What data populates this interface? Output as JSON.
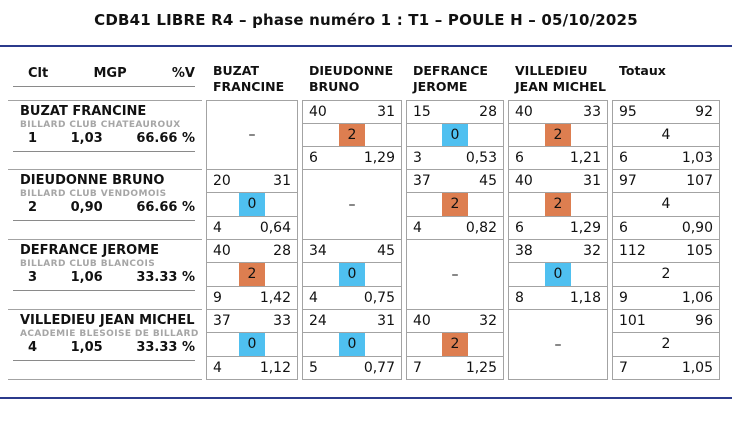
{
  "title": "CDB41 LIBRE R4 – phase numéro 1 : T1 – POULE H – 05/10/2025",
  "ui": {
    "dash": "–"
  },
  "colors": {
    "rule": "#2b3a8c",
    "win": "#dd7e50",
    "loss": "#4fc0f0",
    "grid_border": "#a3a3a3",
    "club_text": "#a6a6a6"
  },
  "header": {
    "clt": "Clt",
    "mgp": "MGP",
    "pv": "%V",
    "columns": [
      {
        "line1": "BUZAT",
        "line2": "FRANCINE"
      },
      {
        "line1": "DIEUDONNE",
        "line2": "BRUNO"
      },
      {
        "line1": "DEFRANCE",
        "line2": "JEROME"
      },
      {
        "line1": "VILLEDIEU",
        "line2": "JEAN MICHEL"
      }
    ],
    "totals_label": "Totaux"
  },
  "rows": [
    {
      "name": "BUZAT FRANCINE",
      "club": "BILLARD CLUB CHATEAUROUX",
      "rank": "1",
      "mgp": "1,03",
      "pv": "66.66 %",
      "matches": [
        null,
        {
          "pts": "40",
          "opp": "31",
          "mp": "2",
          "result": "win",
          "rep": "6",
          "moy": "1,29"
        },
        {
          "pts": "15",
          "opp": "28",
          "mp": "0",
          "result": "loss",
          "rep": "3",
          "moy": "0,53"
        },
        {
          "pts": "40",
          "opp": "33",
          "mp": "2",
          "result": "win",
          "rep": "6",
          "moy": "1,21"
        }
      ],
      "totals": {
        "pts": "95",
        "opp": "92",
        "mp": "4",
        "rep": "6",
        "moy": "1,03"
      }
    },
    {
      "name": "DIEUDONNE BRUNO",
      "club": "BILLARD CLUB VENDOMOIS",
      "rank": "2",
      "mgp": "0,90",
      "pv": "66.66 %",
      "matches": [
        {
          "pts": "20",
          "opp": "31",
          "mp": "0",
          "result": "loss",
          "rep": "4",
          "moy": "0,64"
        },
        null,
        {
          "pts": "37",
          "opp": "45",
          "mp": "2",
          "result": "win",
          "rep": "4",
          "moy": "0,82"
        },
        {
          "pts": "40",
          "opp": "31",
          "mp": "2",
          "result": "win",
          "rep": "6",
          "moy": "1,29"
        }
      ],
      "totals": {
        "pts": "97",
        "opp": "107",
        "mp": "4",
        "rep": "6",
        "moy": "0,90"
      }
    },
    {
      "name": "DEFRANCE JEROME",
      "club": "BILLARD CLUB BLANCOIS",
      "rank": "3",
      "mgp": "1,06",
      "pv": "33.33 %",
      "matches": [
        {
          "pts": "40",
          "opp": "28",
          "mp": "2",
          "result": "win",
          "rep": "9",
          "moy": "1,42"
        },
        {
          "pts": "34",
          "opp": "45",
          "mp": "0",
          "result": "loss",
          "rep": "4",
          "moy": "0,75"
        },
        null,
        {
          "pts": "38",
          "opp": "32",
          "mp": "0",
          "result": "loss",
          "rep": "8",
          "moy": "1,18"
        }
      ],
      "totals": {
        "pts": "112",
        "opp": "105",
        "mp": "2",
        "rep": "9",
        "moy": "1,06"
      }
    },
    {
      "name": "VILLEDIEU JEAN MICHEL",
      "club": "ACADEMIE BLESOISE DE BILLARD",
      "rank": "4",
      "mgp": "1,05",
      "pv": "33.33 %",
      "matches": [
        {
          "pts": "37",
          "opp": "33",
          "mp": "0",
          "result": "loss",
          "rep": "4",
          "moy": "1,12"
        },
        {
          "pts": "24",
          "opp": "31",
          "mp": "0",
          "result": "loss",
          "rep": "5",
          "moy": "0,77"
        },
        {
          "pts": "40",
          "opp": "32",
          "mp": "2",
          "result": "win",
          "rep": "7",
          "moy": "1,25"
        },
        null
      ],
      "totals": {
        "pts": "101",
        "opp": "96",
        "mp": "2",
        "rep": "7",
        "moy": "1,05"
      }
    }
  ]
}
